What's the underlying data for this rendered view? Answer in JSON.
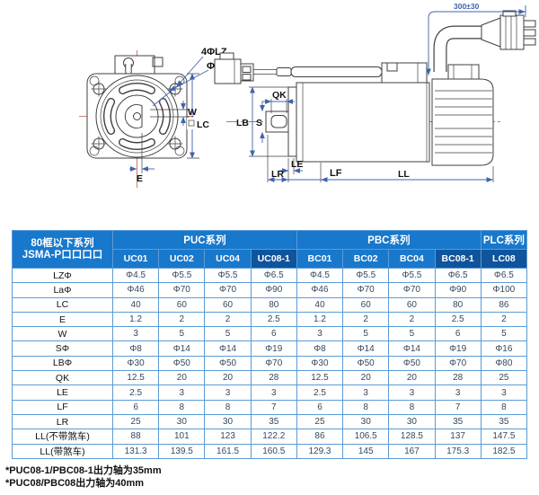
{
  "colors": {
    "header_blue": "#1878cc",
    "header_dark_blue": "#0f549c",
    "border_blue": "#5b9bd5",
    "dimension_blue": "#3f63ae",
    "centerline_red": "#c05a4e"
  },
  "diagram": {
    "front": {
      "hole_label": "4ΦLZ",
      "pilot_label": "Φ La",
      "w": "W",
      "lc": "LC",
      "e": "E"
    },
    "side": {
      "qk": "QK",
      "lb": "LB",
      "s": "S",
      "le": "LE",
      "lr": "LR",
      "lf": "LF",
      "ll": "LL",
      "cable_length": "300±30"
    }
  },
  "table": {
    "corner_line1": "80框以下系列",
    "corner_line2": "JSMA-P口口口口",
    "groups": [
      {
        "label": "PUC系列",
        "span": 4
      },
      {
        "label": "PBC系列",
        "span": 4
      },
      {
        "label": "PLC系列",
        "span": 1
      }
    ],
    "models": [
      "UC01",
      "UC02",
      "UC04",
      "UC08-1",
      "BC01",
      "BC02",
      "BC04",
      "BC08-1",
      "LC08"
    ],
    "highlight_columns": [
      3,
      7,
      8
    ],
    "rows": [
      {
        "label": "LZΦ",
        "values": [
          "Φ4.5",
          "Φ5.5",
          "Φ5.5",
          "Φ6.5",
          "Φ4.5",
          "Φ5.5",
          "Φ5.5",
          "Φ6.5",
          "Φ6.5"
        ]
      },
      {
        "label": "LaΦ",
        "values": [
          "Φ46",
          "Φ70",
          "Φ70",
          "Φ90",
          "Φ46",
          "Φ70",
          "Φ70",
          "Φ90",
          "Φ100"
        ]
      },
      {
        "label": "LC",
        "values": [
          "40",
          "60",
          "60",
          "80",
          "40",
          "60",
          "60",
          "80",
          "86"
        ]
      },
      {
        "label": "E",
        "values": [
          "1.2",
          "2",
          "2",
          "2.5",
          "1.2",
          "2",
          "2",
          "2.5",
          "2"
        ]
      },
      {
        "label": "W",
        "values": [
          "3",
          "5",
          "5",
          "6",
          "3",
          "5",
          "5",
          "6",
          "5"
        ]
      },
      {
        "label": "SΦ",
        "values": [
          "Φ8",
          "Φ14",
          "Φ14",
          "Φ19",
          "Φ8",
          "Φ14",
          "Φ14",
          "Φ19",
          "Φ16"
        ]
      },
      {
        "label": "LBΦ",
        "values": [
          "Φ30",
          "Φ50",
          "Φ50",
          "Φ70",
          "Φ30",
          "Φ50",
          "Φ50",
          "Φ70",
          "Φ80"
        ]
      },
      {
        "label": "QK",
        "values": [
          "12.5",
          "20",
          "20",
          "28",
          "12.5",
          "20",
          "20",
          "28",
          "25"
        ]
      },
      {
        "label": "LE",
        "values": [
          "2.5",
          "3",
          "3",
          "3",
          "2.5",
          "3",
          "3",
          "3",
          "3"
        ]
      },
      {
        "label": "LF",
        "values": [
          "6",
          "8",
          "8",
          "7",
          "6",
          "8",
          "8",
          "7",
          "8"
        ]
      },
      {
        "label": "LR",
        "values": [
          "25",
          "30",
          "30",
          "35",
          "25",
          "30",
          "30",
          "35",
          "35"
        ]
      },
      {
        "label": "LL(不带煞车)",
        "values": [
          "88",
          "101",
          "123",
          "122.2",
          "86",
          "106.5",
          "128.5",
          "137",
          "147.5"
        ]
      },
      {
        "label": "LL(带煞车)",
        "values": [
          "131.3",
          "139.5",
          "161.5",
          "160.5",
          "129.3",
          "145",
          "167",
          "175.3",
          "182.5"
        ]
      }
    ]
  },
  "footnotes": [
    "*PUC08-1/PBC08-1出力轴为35mm",
    "*PUC08/PBC08出力轴为40mm"
  ]
}
